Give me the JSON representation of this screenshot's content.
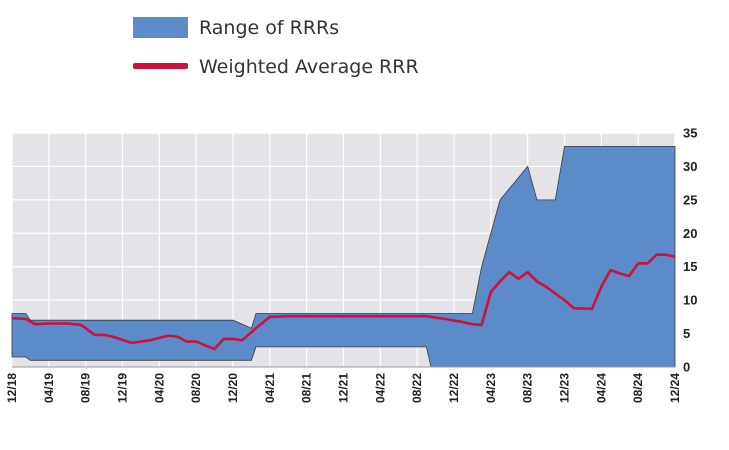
{
  "chart_data": {
    "type": "area",
    "legend": [
      {
        "label": "Range of RRRs",
        "kind": "area",
        "color": "#5b8bc9"
      },
      {
        "label": "Weighted Average RRR",
        "kind": "line",
        "color": "#d0103a"
      }
    ],
    "legend_placement": "top-left",
    "x_ticks": [
      "12/18",
      "04/19",
      "08/19",
      "12/19",
      "04/20",
      "08/20",
      "12/20",
      "04/21",
      "08/21",
      "12/21",
      "04/22",
      "08/22",
      "12/22",
      "04/23",
      "08/23",
      "12/23",
      "04/24",
      "08/24",
      "12/24"
    ],
    "y_ticks": [
      0,
      5,
      10,
      15,
      20,
      25,
      30,
      35
    ],
    "ylim": [
      0,
      35
    ],
    "y_axis_side": "right",
    "grid": true,
    "x_unit": "months since 12/18",
    "series": [
      {
        "name": "Range of RRRs",
        "kind": "range",
        "x": [
          0,
          1.5,
          2,
          4,
          8,
          12,
          16,
          20,
          24,
          26,
          26.5,
          30,
          34,
          38,
          42,
          45,
          45.5,
          47,
          49,
          50,
          51,
          53,
          56,
          57,
          59,
          60,
          63,
          65,
          66,
          70,
          72
        ],
        "high": [
          8,
          8,
          7,
          7,
          7,
          7,
          7,
          7,
          7,
          5.8,
          8,
          8,
          8,
          8,
          8,
          8,
          8,
          8,
          8,
          8,
          15,
          25,
          30,
          25,
          25,
          33,
          33,
          33,
          33,
          33,
          33
        ],
        "low": [
          1.5,
          1.5,
          1,
          1,
          1,
          1,
          1,
          1,
          1,
          1,
          3,
          3,
          3,
          3,
          3,
          3,
          0,
          0,
          0,
          0,
          0,
          0,
          0,
          0,
          0,
          0,
          0,
          0,
          0,
          0,
          0
        ]
      },
      {
        "name": "Weighted Average RRR",
        "kind": "line",
        "x": [
          0,
          1.5,
          2.5,
          4,
          6,
          7.5,
          9,
          10,
          11,
          13,
          14,
          15,
          17,
          18,
          19,
          20,
          21,
          22,
          23,
          24,
          25,
          26.5,
          28,
          30,
          34,
          38,
          42,
          45,
          47,
          49,
          50,
          51,
          52,
          53,
          54,
          55,
          56,
          57,
          58,
          59,
          60,
          61,
          63,
          64,
          65,
          66,
          67,
          68,
          69,
          70,
          71,
          72
        ],
        "y": [
          7.3,
          7.2,
          6.4,
          6.5,
          6.5,
          6.3,
          4.8,
          4.8,
          4.5,
          3.6,
          3.8,
          4.0,
          4.7,
          4.5,
          3.8,
          3.8,
          3.2,
          2.7,
          4.2,
          4.2,
          4.0,
          5.8,
          7.5,
          7.6,
          7.6,
          7.6,
          7.6,
          7.6,
          7.2,
          6.7,
          6.4,
          6.3,
          11.2,
          12.8,
          14.2,
          13.2,
          14.2,
          12.8,
          12.0,
          11.0,
          10.0,
          8.8,
          8.7,
          12.0,
          14.5,
          14.0,
          13.6,
          15.5,
          15.5,
          16.8,
          16.8,
          16.5
        ]
      }
    ]
  }
}
